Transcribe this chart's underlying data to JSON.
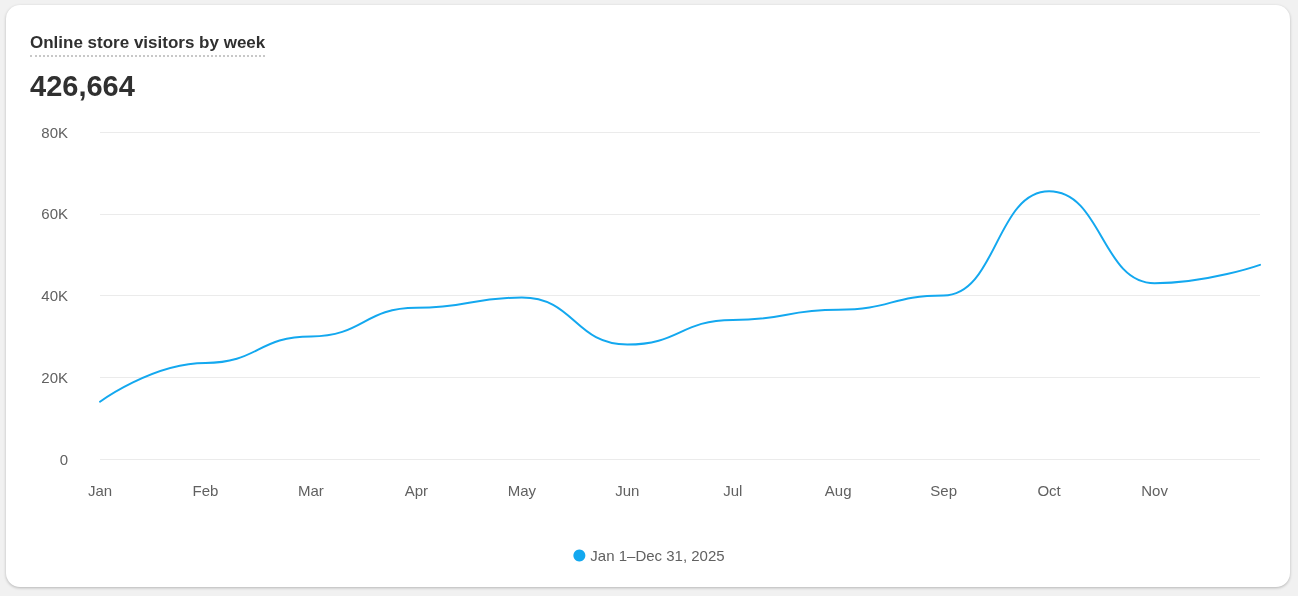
{
  "chart_data": {
    "type": "line",
    "title": "Online store visitors by week",
    "subtitle": "426,664",
    "categories": [
      "Jan",
      "Feb",
      "Mar",
      "Apr",
      "May",
      "Jun",
      "Jul",
      "Aug",
      "Sep",
      "Oct",
      "Nov",
      null
    ],
    "series": [
      {
        "name": "Jan 1–Dec 31, 2025",
        "color": "#13a8ef",
        "values": [
          14000,
          23500,
          30000,
          37000,
          39500,
          28000,
          34000,
          36500,
          40000,
          65500,
          43000,
          47500
        ]
      }
    ],
    "ylim": [
      0,
      80000
    ],
    "yticks": [
      {
        "value": 0,
        "label": "0"
      },
      {
        "value": 20000,
        "label": "20K"
      },
      {
        "value": 40000,
        "label": "40K"
      },
      {
        "value": 60000,
        "label": "60K"
      },
      {
        "value": 80000,
        "label": "80K"
      }
    ],
    "grid": "y",
    "legend": "bottom",
    "marker": "none",
    "line_style": "solid"
  }
}
